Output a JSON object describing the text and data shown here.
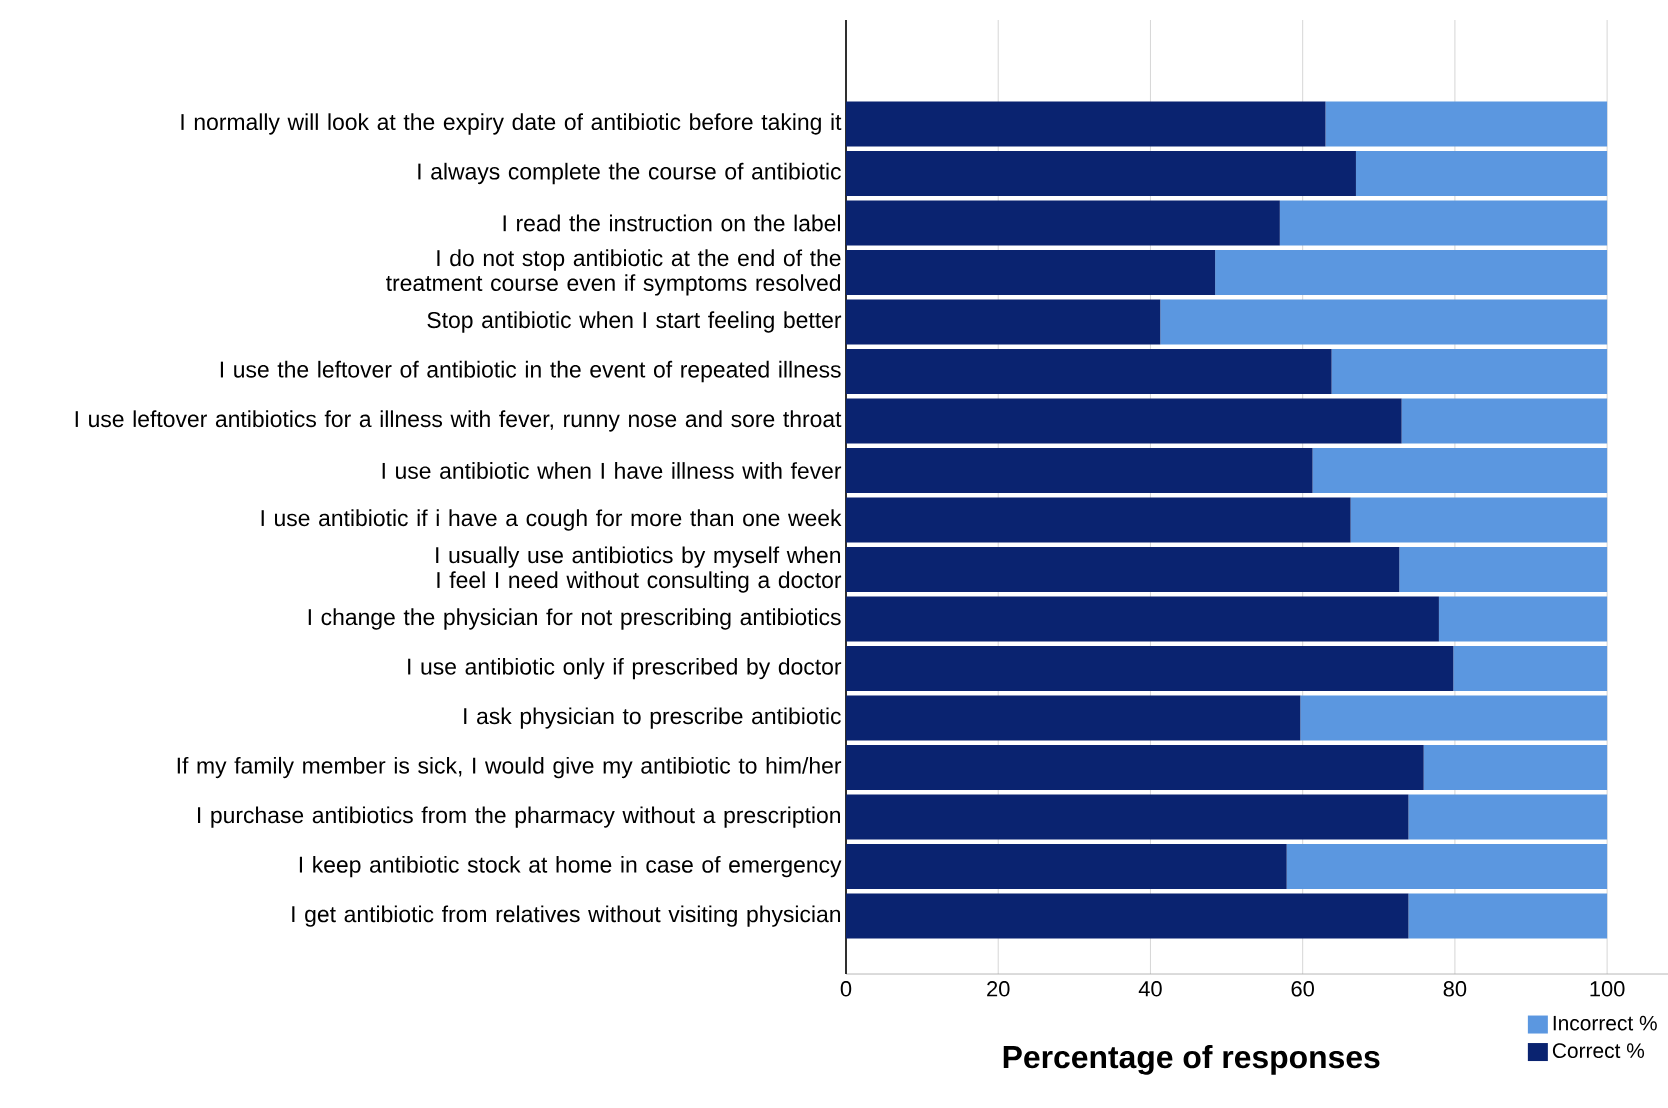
{
  "chart_data": {
    "type": "bar",
    "orientation": "horizontal",
    "stacked": true,
    "categories": [
      "I normally will look at the expiry date of antibiotic before taking it",
      "I always complete the course of antibiotic",
      "I read the instruction on the label",
      "I do not stop antibiotic at the end of the treatment course even if symptoms resolved",
      "Stop antibiotic when I start feeling better",
      "I use the leftover of antibiotic in the event of repeated illness",
      "I use leftover antibiotics for a  illness with fever, runny nose and sore throat",
      "I use antibiotic when I have illness with fever",
      "I use antibiotic if i have a cough for more than one week",
      "I usually use antibiotics by myself when I feel I need without consulting a doctor",
      "I change the physician for not prescribing antibiotics",
      "I use antibiotic only if prescribed by doctor",
      "I ask physician to prescribe antibiotic",
      "If my family member is sick, I would give my antibiotic to him/her",
      "I purchase antibiotics from the pharmacy without a prescription",
      "I keep antibiotic stock at home in case of emergency",
      "I get antibiotic from relatives without visiting physician"
    ],
    "series": [
      {
        "name": "Correct %",
        "color": "#0a2370",
        "values": [
          63,
          67,
          57,
          48.5,
          41.3,
          63.8,
          73,
          61.3,
          66.3,
          72.7,
          77.9,
          79.8,
          59.7,
          75.9,
          73.9,
          57.9,
          73.9
        ]
      },
      {
        "name": "Incorrect %",
        "color": "#5b97e0",
        "values": [
          37,
          33,
          43,
          51.5,
          58.7,
          36.2,
          27,
          38.7,
          33.7,
          27.3,
          22.1,
          20.2,
          40.3,
          24.1,
          26.1,
          42.1,
          26.1
        ]
      }
    ],
    "xlabel": "Percentage of responses",
    "xlim": [
      0,
      108
    ],
    "xticks": [
      0,
      20,
      40,
      60,
      80,
      100
    ],
    "grid": "x",
    "legend": "bottom right"
  }
}
